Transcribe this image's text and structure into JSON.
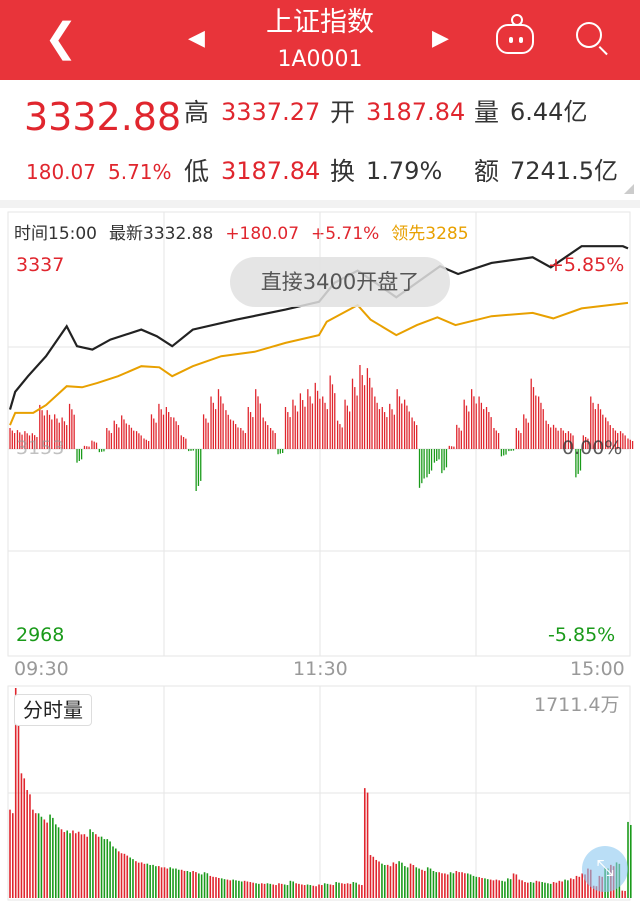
{
  "header": {
    "title": "上证指数",
    "code": "1A0001",
    "back_icon": "chevron-left-icon",
    "prev_icon": "triangle-left-icon",
    "next_icon": "triangle-right-icon",
    "robot_icon": "robot-icon",
    "search_icon": "search-icon"
  },
  "quote": {
    "price": "3332.88",
    "change": "180.07",
    "change_pct": "5.71%",
    "high_label": "高",
    "high": "3337.27",
    "open_label": "开",
    "open": "3187.84",
    "volume_label": "量",
    "volume": "6.44亿",
    "low_label": "低",
    "low": "3187.84",
    "turnover_label": "换",
    "turnover": "1.79%",
    "amount_label": "额",
    "amount": "7241.5亿"
  },
  "info_bar": {
    "time": "时间15:00",
    "latest": "最新3332.88",
    "change": "+180.07",
    "change_pct": "+5.71%",
    "lead": "领先3285"
  },
  "toast": "直接3400开盘了",
  "colors": {
    "up": "#e0262e",
    "down": "#1a9a1a",
    "price_line": "#222222",
    "avg_line": "#e8a000",
    "header": "#e8343a"
  },
  "chart_data": [
    {
      "type": "line",
      "name": "intraday",
      "prev_close": 3152.81,
      "y_labels": {
        "max": "3337",
        "mid": "3153",
        "min": "2968",
        "max_pct": "+5.85%",
        "mid_pct": "0.00%",
        "min_pct": "-5.85%"
      },
      "ylim": [
        2968,
        3337
      ],
      "x_labels": [
        "09:30",
        "11:30",
        "15:00"
      ],
      "price": {
        "minute": [
          0,
          2,
          7,
          14,
          22,
          26,
          32,
          39,
          51,
          57,
          63,
          71,
          88,
          107,
          120,
          126,
          135,
          142,
          150,
          167,
          174,
          187,
          203,
          210,
          222,
          238,
          240
        ],
        "value": [
          3188,
          3204,
          3218,
          3236,
          3263,
          3245,
          3242,
          3251,
          3260,
          3254,
          3245,
          3260,
          3269,
          3278,
          3285,
          3302,
          3313,
          3302,
          3289,
          3317,
          3310,
          3320,
          3325,
          3316,
          3335,
          3335,
          3333
        ]
      },
      "average": {
        "minute": [
          0,
          2,
          9,
          14,
          22,
          28,
          34,
          42,
          51,
          58,
          63,
          71,
          82,
          95,
          107,
          120,
          123,
          135,
          140,
          150,
          158,
          166,
          173,
          187,
          203,
          211,
          222,
          240
        ],
        "value": [
          3174,
          3185,
          3185,
          3192,
          3209,
          3208,
          3212,
          3218,
          3227,
          3226,
          3218,
          3227,
          3236,
          3240,
          3248,
          3255,
          3267,
          3282,
          3269,
          3255,
          3264,
          3271,
          3264,
          3272,
          3275,
          3270,
          3279,
          3284
        ]
      },
      "lead_bars": [
        20,
        18,
        17,
        15,
        42,
        37,
        33,
        30,
        43,
        -13,
        3,
        8,
        -3,
        20,
        27,
        32,
        23,
        17,
        10,
        33,
        43,
        40,
        30,
        13,
        -2,
        -40,
        33,
        50,
        57,
        37,
        27,
        20,
        40,
        57,
        30,
        20,
        -5,
        40,
        47,
        53,
        57,
        63,
        50,
        70,
        27,
        47,
        67,
        80,
        77,
        50,
        40,
        43,
        57,
        47,
        30,
        -37,
        -27,
        -13,
        -23,
        3,
        23,
        47,
        57,
        50,
        40,
        20,
        -7,
        -2,
        20,
        33,
        67,
        50,
        27,
        23,
        20,
        17,
        -27,
        13,
        50,
        43,
        30,
        20,
        17,
        10
      ]
    },
    {
      "type": "bar",
      "name": "volume",
      "label": "分时量",
      "max_label": "1711.4万",
      "ymax": 1711.4,
      "values": [
        720,
        1711,
        1016,
        880,
        720,
        690,
        640,
        680,
        600,
        560,
        550,
        550,
        540,
        520,
        560,
        520,
        500,
        480,
        420,
        380,
        360,
        330,
        300,
        290,
        280,
        270,
        260,
        250,
        250,
        240,
        230,
        220,
        220,
        200,
        210,
        180,
        170,
        160,
        150,
        150,
        140,
        140,
        130,
        120,
        120,
        120,
        110,
        120,
        110,
        140,
        120,
        110,
        110,
        100,
        110,
        120,
        110,
        130,
        120,
        120,
        130,
        110,
        895,
        350,
        310,
        280,
        270,
        290,
        300,
        260,
        280,
        250,
        230,
        250,
        220,
        210,
        200,
        210,
        220,
        210,
        200,
        180,
        170,
        160,
        150,
        150,
        140,
        160,
        200,
        150,
        130,
        130,
        140,
        130,
        120,
        130,
        140,
        150,
        160,
        180,
        200,
        240,
        100,
        180,
        250,
        270,
        290,
        60,
        620
      ],
      "up": [
        1,
        1,
        1,
        1,
        1,
        0,
        1,
        0,
        0,
        1,
        0,
        1,
        1,
        1,
        0,
        1,
        0,
        0,
        0,
        1,
        1,
        0,
        1,
        1,
        0,
        0,
        1,
        1,
        0,
        0,
        1,
        0,
        1,
        0,
        0,
        1,
        1,
        0,
        1,
        0,
        0,
        1,
        1,
        0,
        1,
        0,
        1,
        1,
        0,
        0,
        1,
        1,
        0,
        1,
        1,
        0,
        1,
        0,
        1,
        1,
        0,
        1,
        1,
        1,
        1,
        0,
        1,
        1,
        0,
        0,
        1,
        0,
        1,
        0,
        0,
        1,
        1,
        0,
        1,
        1,
        0,
        0,
        1,
        0,
        1,
        1,
        0,
        0,
        1,
        1,
        1,
        0,
        1,
        0,
        0,
        1,
        1,
        0,
        1,
        1,
        1,
        1,
        1,
        1,
        0,
        1,
        0,
        1,
        0
      ]
    }
  ]
}
